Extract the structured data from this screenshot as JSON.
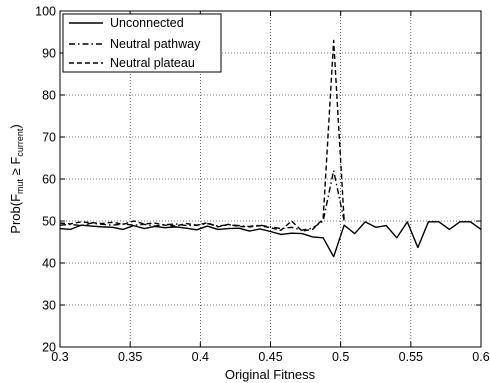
{
  "chart_data": {
    "type": "line",
    "xlabel": "Original Fitness",
    "ylabel_parts": {
      "prefix": "Prob(F",
      "sub1": "mut",
      "relation": " ≥ F",
      "sub2": "current",
      "suffix": ")"
    },
    "xlim": [
      0.3,
      0.6
    ],
    "ylim": [
      20,
      100
    ],
    "xticks": [
      0.3,
      0.35,
      0.4,
      0.45,
      0.5,
      0.55,
      0.6
    ],
    "xtick_labels": [
      "0.3",
      "0.35",
      "0.4",
      "0.45",
      "0.5",
      "0.55",
      "0.6"
    ],
    "yticks": [
      20,
      30,
      40,
      50,
      60,
      70,
      80,
      90,
      100
    ],
    "ytick_labels": [
      "20",
      "30",
      "40",
      "50",
      "60",
      "70",
      "80",
      "90",
      "100"
    ],
    "grid": true,
    "legend_position": "top-left",
    "series": [
      {
        "name": "Unconnected",
        "style": "solid",
        "x": [
          0.3,
          0.3075,
          0.315,
          0.3225,
          0.33,
          0.3375,
          0.345,
          0.3525,
          0.36,
          0.3675,
          0.375,
          0.3825,
          0.39,
          0.3975,
          0.405,
          0.4125,
          0.42,
          0.4275,
          0.435,
          0.4425,
          0.45,
          0.4575,
          0.465,
          0.4725,
          0.48,
          0.4875,
          0.495,
          0.5025,
          0.51,
          0.5175,
          0.525,
          0.5325,
          0.54,
          0.5475,
          0.555,
          0.5625,
          0.57,
          0.5775,
          0.585,
          0.5925,
          0.6
        ],
        "y": [
          48.2,
          48.0,
          49.0,
          48.8,
          48.6,
          48.5,
          48.0,
          48.9,
          48.2,
          48.7,
          48.4,
          48.6,
          48.3,
          47.9,
          48.8,
          48.0,
          48.2,
          48.3,
          47.6,
          48.1,
          47.5,
          46.8,
          47.1,
          47.0,
          46.2,
          46.0,
          41.5,
          49.0,
          47.0,
          49.8,
          48.5,
          48.9,
          46.0,
          49.8,
          43.7,
          49.8,
          49.8,
          48.0,
          49.8,
          49.8,
          48.0
        ]
      },
      {
        "name": "Neutral pathway",
        "style": "dashdot",
        "x": [
          0.3,
          0.3075,
          0.315,
          0.3225,
          0.33,
          0.3375,
          0.345,
          0.3525,
          0.36,
          0.3675,
          0.375,
          0.3825,
          0.39,
          0.3975,
          0.405,
          0.4125,
          0.42,
          0.4275,
          0.435,
          0.4425,
          0.45,
          0.4575,
          0.465,
          0.4725,
          0.48,
          0.4875,
          0.495,
          0.5025
        ],
        "y": [
          49.0,
          49.2,
          48.9,
          49.5,
          49.2,
          49.0,
          49.3,
          49.0,
          49.2,
          48.8,
          49.1,
          49.3,
          48.9,
          49.0,
          49.4,
          48.8,
          49.1,
          48.9,
          48.7,
          49.0,
          48.6,
          48.2,
          48.5,
          47.8,
          48.3,
          50.0,
          62.0,
          50.0
        ]
      },
      {
        "name": "Neutral plateau",
        "style": "dashed",
        "x": [
          0.3,
          0.3075,
          0.315,
          0.3225,
          0.33,
          0.3375,
          0.345,
          0.3525,
          0.36,
          0.3675,
          0.375,
          0.3825,
          0.39,
          0.3975,
          0.405,
          0.4125,
          0.42,
          0.4275,
          0.435,
          0.4425,
          0.45,
          0.4575,
          0.465,
          0.4725,
          0.48,
          0.4875,
          0.495,
          0.5025
        ],
        "y": [
          49.5,
          49.3,
          49.8,
          49.6,
          49.4,
          49.7,
          49.2,
          50.0,
          49.3,
          49.5,
          49.0,
          48.8,
          49.4,
          49.0,
          49.6,
          48.6,
          49.2,
          48.7,
          48.6,
          48.9,
          48.4,
          47.8,
          50.0,
          47.6,
          48.0,
          50.5,
          93.0,
          50.0
        ]
      }
    ]
  }
}
